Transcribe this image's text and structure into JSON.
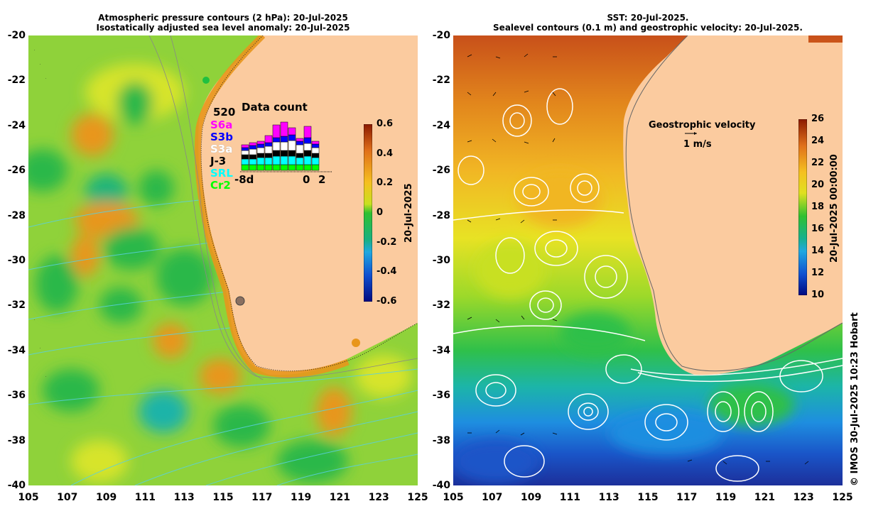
{
  "left_panel": {
    "title_line1": "Atmospheric pressure contours (2 hPa): 20-Jul-2025",
    "title_line2": "Isostatically adjusted sea level anomaly: 20-Jul-2025",
    "colorbar_label": "20-Jul-2025",
    "colorbar_ticks": [
      "0.6",
      "0.4",
      "0.2",
      "0",
      "-0.2",
      "-0.4",
      "-0.6"
    ],
    "data_count": {
      "title": "Data count",
      "max": "520",
      "satellites": [
        {
          "name": "S6a",
          "color": "#ff00ff"
        },
        {
          "name": "S3b",
          "color": "#0000ff"
        },
        {
          "name": "S3a",
          "color": "#ffffff"
        },
        {
          "name": "J-3",
          "color": "#000000"
        },
        {
          "name": "SRL",
          "color": "#00ffff"
        },
        {
          "name": "Cr2",
          "color": "#00ff00"
        }
      ],
      "axis_left": "-8d",
      "axis_zero": "0",
      "axis_right": "2"
    }
  },
  "right_panel": {
    "title_line1": "SST: 20-Jul-2025.",
    "title_line2": "Sealevel contours (0.1 m) and geostrophic velocity: 20-Jul-2025.",
    "colorbar_label": "20-Jul-2025 00:00:00",
    "colorbar_ticks": [
      "26",
      "24",
      "22",
      "20",
      "18",
      "16",
      "14",
      "12",
      "10"
    ],
    "legend_title": "Geostrophic velocity",
    "legend_scale": "1 m/s"
  },
  "axes": {
    "y_ticks": [
      "-20",
      "-22",
      "-24",
      "-26",
      "-28",
      "-30",
      "-32",
      "-34",
      "-36",
      "-38",
      "-40"
    ],
    "x_ticks": [
      "105",
      "107",
      "109",
      "111",
      "113",
      "115",
      "117",
      "119",
      "121",
      "123",
      "125"
    ]
  },
  "credit": "© IMOS 30-Jul-2025 10:23 Hobart",
  "colors": {
    "land": "#fbcb9f",
    "slafill": "#7ccd3a",
    "sst_warm": "#d4781e",
    "sst_cold": "#1f6fd0"
  }
}
